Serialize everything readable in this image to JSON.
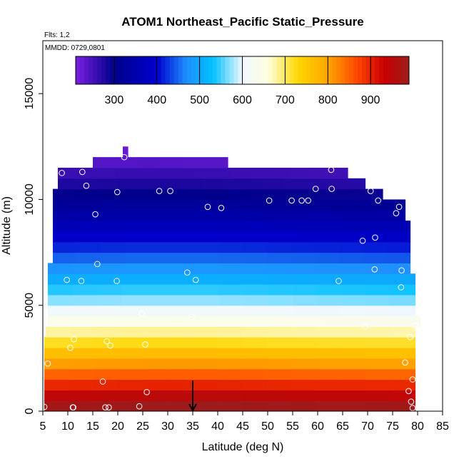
{
  "chart_data": {
    "type": "heatmap",
    "title": "ATOM1 Northeast_Pacific Static_Pressure",
    "flights_note": "Flts: 1,2",
    "dates_note": "MMDD: 0729,0801",
    "xlabel": "Latitude (deg N)",
    "ylabel": "Altitude (m)",
    "xlim": [
      5,
      85
    ],
    "ylim": [
      0,
      17500
    ],
    "x_ticks": [
      "5",
      "10",
      "15",
      "20",
      "25",
      "30",
      "35",
      "40",
      "45",
      "50",
      "55",
      "60",
      "65",
      "70",
      "75",
      "80",
      "85"
    ],
    "y_ticks": [
      "0",
      "5000",
      "10000",
      "15000"
    ],
    "colorbar": {
      "range": [
        210,
        990
      ],
      "ticks": [
        "300",
        "400",
        "500",
        "600",
        "700",
        "800",
        "900"
      ],
      "color_stops": [
        {
          "value": 210,
          "color": "#7a1fe0"
        },
        {
          "value": 300,
          "color": "#00008b"
        },
        {
          "value": 400,
          "color": "#0000cd"
        },
        {
          "value": 470,
          "color": "#1e90ff"
        },
        {
          "value": 530,
          "color": "#00bfff"
        },
        {
          "value": 600,
          "color": "#f0f8ff"
        },
        {
          "value": 660,
          "color": "#ffffe0"
        },
        {
          "value": 730,
          "color": "#ffd700"
        },
        {
          "value": 800,
          "color": "#ffa500"
        },
        {
          "value": 870,
          "color": "#ff4500"
        },
        {
          "value": 930,
          "color": "#cc0000"
        },
        {
          "value": 990,
          "color": "#9b1c1c"
        }
      ]
    },
    "altitude_bin_m": 500,
    "grid_cells": [
      {
        "y0": 0,
        "x0": 5.3,
        "x1": 79.5,
        "values": [
          980,
          982,
          984,
          986,
          987,
          988,
          989,
          988,
          986,
          985,
          984,
          983,
          983,
          982,
          982
        ]
      },
      {
        "y0": 500,
        "x0": 5.3,
        "x1": 79.5,
        "values": [
          945,
          946,
          947,
          948,
          949,
          950,
          950,
          949,
          948,
          947,
          946,
          946,
          945,
          945,
          944
        ]
      },
      {
        "y0": 1000,
        "x0": 5.3,
        "x1": 79.5,
        "values": [
          895,
          897,
          898,
          899,
          900,
          900,
          900,
          899,
          898,
          897,
          896,
          895,
          895,
          894,
          894
        ]
      },
      {
        "y0": 1500,
        "x0": 5.3,
        "x1": 79.5,
        "values": [
          848,
          850,
          851,
          852,
          853,
          853,
          853,
          852,
          851,
          850,
          849,
          848,
          848,
          847,
          847
        ]
      },
      {
        "y0": 2000,
        "x0": 5.3,
        "x1": 79.5,
        "values": [
          805,
          806,
          807,
          808,
          809,
          809,
          809,
          808,
          807,
          806,
          805,
          804,
          804,
          803,
          803
        ]
      },
      {
        "y0": 2500,
        "x0": 5.3,
        "x1": 79.5,
        "values": [
          765,
          766,
          767,
          768,
          768,
          768,
          768,
          767,
          766,
          765,
          764,
          763,
          763,
          762,
          762
        ]
      },
      {
        "y0": 3000,
        "x0": 5.3,
        "x1": 79.5,
        "values": [
          720,
          721,
          722,
          723,
          723,
          723,
          723,
          722,
          721,
          720,
          719,
          718,
          718,
          717,
          717
        ]
      },
      {
        "y0": 3500,
        "x0": 5.6,
        "x1": 79.5,
        "values": [
          680,
          681,
          682,
          683,
          683,
          683,
          683,
          682,
          681,
          680,
          679,
          678,
          678,
          677,
          676
        ]
      },
      {
        "y0": 4000,
        "x0": 6.0,
        "x1": 80.5,
        "values": [
          640,
          641,
          642,
          643,
          643,
          643,
          643,
          642,
          641,
          640,
          639,
          638,
          637,
          636,
          636
        ]
      },
      {
        "y0": 4500,
        "x0": 6.0,
        "x1": 79.5,
        "values": [
          605,
          606,
          607,
          608,
          608,
          608,
          608,
          607,
          606,
          605,
          604,
          603,
          602,
          601,
          600
        ]
      },
      {
        "y0": 5000,
        "x0": 6.0,
        "x1": 79.5,
        "values": [
          570,
          571,
          572,
          573,
          573,
          573,
          573,
          572,
          571,
          570,
          569,
          568,
          567,
          566,
          565
        ]
      },
      {
        "y0": 5500,
        "x0": 6.0,
        "x1": 79.5,
        "values": [
          540,
          541,
          542,
          543,
          543,
          543,
          543,
          542,
          541,
          540,
          539,
          538,
          537,
          536,
          535
        ]
      },
      {
        "y0": 6000,
        "x0": 6.0,
        "x1": 79.5,
        "values": [
          505,
          506,
          507,
          508,
          508,
          508,
          508,
          507,
          506,
          505,
          504,
          503,
          502,
          501,
          500
        ]
      },
      {
        "y0": 6500,
        "x0": 6.0,
        "x1": 78.5,
        "values": [
          475,
          476,
          477,
          478,
          478,
          478,
          478,
          477,
          476,
          475,
          474,
          473,
          472,
          471,
          470
        ]
      },
      {
        "y0": 7000,
        "x0": 7.0,
        "x1": 78.5,
        "values": [
          447,
          448,
          449,
          450,
          450,
          450,
          450,
          449,
          448,
          447,
          446,
          445,
          444,
          443,
          442
        ]
      },
      {
        "y0": 7500,
        "x0": 7.0,
        "x1": 78.5,
        "values": [
          418,
          419,
          420,
          421,
          421,
          421,
          421,
          420,
          419,
          418,
          417,
          416,
          415,
          414,
          413
        ]
      },
      {
        "y0": 8000,
        "x0": 7.0,
        "x1": 78.5,
        "values": [
          392,
          393,
          394,
          395,
          395,
          395,
          395,
          394,
          393,
          392,
          391,
          390,
          389,
          388,
          387
        ]
      },
      {
        "y0": 8500,
        "x0": 7.0,
        "x1": 78.5,
        "values": [
          367,
          368,
          369,
          370,
          370,
          370,
          370,
          369,
          368,
          367,
          366,
          365,
          364,
          363,
          362
        ]
      },
      {
        "y0": 9000,
        "x0": 7.0,
        "x1": 77.5,
        "values": [
          343,
          344,
          345,
          346,
          346,
          346,
          346,
          345,
          344,
          343,
          342,
          341,
          340,
          339,
          338
        ]
      },
      {
        "y0": 9500,
        "x0": 7.0,
        "x1": 77.5,
        "values": [
          320,
          321,
          322,
          323,
          323,
          323,
          323,
          322,
          321,
          320,
          319,
          318,
          317,
          316,
          315
        ]
      },
      {
        "y0": 10000,
        "x0": 7.0,
        "x1": 73.0,
        "values": [
          298,
          299,
          300,
          301,
          301,
          301,
          301,
          300,
          299,
          298,
          297,
          296,
          295,
          294,
          293
        ]
      },
      {
        "y0": 10500,
        "x0": 8.0,
        "x1": 69.5,
        "values": [
          277,
          278,
          279,
          280,
          280,
          280,
          280,
          279,
          278,
          277,
          276,
          275,
          274,
          273,
          272
        ]
      },
      {
        "y0": 11000,
        "x0": 8.0,
        "x1": 66.0,
        "values": [
          258,
          259,
          260,
          261,
          261,
          261,
          261,
          260,
          259,
          258,
          257,
          256,
          255,
          254,
          253
        ]
      },
      {
        "y0": 11500,
        "x0": 15.0,
        "x1": 42.0,
        "values": [
          238,
          239,
          240,
          238,
          236,
          235
        ]
      },
      {
        "y0": 12000,
        "x0": 21.0,
        "x1": 22.0,
        "values": [
          225
        ]
      }
    ],
    "flight_points": [
      {
        "lat": 5.3,
        "alt": 200
      },
      {
        "lat": 11.0,
        "alt": 180
      },
      {
        "lat": 11.1,
        "alt": 180
      },
      {
        "lat": 17.5,
        "alt": 180
      },
      {
        "lat": 18.2,
        "alt": 180
      },
      {
        "lat": 24.3,
        "alt": 230
      },
      {
        "lat": 25.8,
        "alt": 900
      },
      {
        "lat": 17.0,
        "alt": 1400
      },
      {
        "lat": 6.0,
        "alt": 2250
      },
      {
        "lat": 10.5,
        "alt": 3000
      },
      {
        "lat": 11.2,
        "alt": 3400
      },
      {
        "lat": 17.8,
        "alt": 3300
      },
      {
        "lat": 18.5,
        "alt": 3100
      },
      {
        "lat": 25.5,
        "alt": 3150
      },
      {
        "lat": 24.8,
        "alt": 4600
      },
      {
        "lat": 34.8,
        "alt": 4450
      },
      {
        "lat": 69.5,
        "alt": 4000
      },
      {
        "lat": 79.5,
        "alt": 4050
      },
      {
        "lat": 78.5,
        "alt": 3500
      },
      {
        "lat": 77.5,
        "alt": 2300
      },
      {
        "lat": 79.0,
        "alt": 1500
      },
      {
        "lat": 78.2,
        "alt": 950
      },
      {
        "lat": 78.7,
        "alt": 450
      },
      {
        "lat": 79.0,
        "alt": 150
      },
      {
        "lat": 9.8,
        "alt": 6200
      },
      {
        "lat": 12.7,
        "alt": 6150
      },
      {
        "lat": 19.8,
        "alt": 6150
      },
      {
        "lat": 15.9,
        "alt": 6950
      },
      {
        "lat": 33.9,
        "alt": 6550
      },
      {
        "lat": 35.6,
        "alt": 6200
      },
      {
        "lat": 64.2,
        "alt": 6150
      },
      {
        "lat": 71.4,
        "alt": 6700
      },
      {
        "lat": 76.8,
        "alt": 6650
      },
      {
        "lat": 76.7,
        "alt": 5850
      },
      {
        "lat": 69.0,
        "alt": 8050
      },
      {
        "lat": 71.5,
        "alt": 8200
      },
      {
        "lat": 15.5,
        "alt": 9300
      },
      {
        "lat": 38.0,
        "alt": 9650
      },
      {
        "lat": 40.7,
        "alt": 9600
      },
      {
        "lat": 75.7,
        "alt": 9350
      },
      {
        "lat": 76.3,
        "alt": 9650
      },
      {
        "lat": 72.1,
        "alt": 9950
      },
      {
        "lat": 70.6,
        "alt": 10400
      },
      {
        "lat": 50.3,
        "alt": 9950
      },
      {
        "lat": 54.8,
        "alt": 9950
      },
      {
        "lat": 56.8,
        "alt": 9950
      },
      {
        "lat": 58.1,
        "alt": 9950
      },
      {
        "lat": 59.6,
        "alt": 10500
      },
      {
        "lat": 62.8,
        "alt": 10500
      },
      {
        "lat": 62.7,
        "alt": 11400
      },
      {
        "lat": 7.3,
        "alt": 10650
      },
      {
        "lat": 8.8,
        "alt": 11250
      },
      {
        "lat": 12.9,
        "alt": 11300
      },
      {
        "lat": 13.7,
        "alt": 10650
      },
      {
        "lat": 19.9,
        "alt": 10350
      },
      {
        "lat": 28.3,
        "alt": 10400
      },
      {
        "lat": 30.5,
        "alt": 10400
      },
      {
        "lat": 21.3,
        "alt": 12000
      }
    ],
    "arrow_marker": {
      "lat": 35.0,
      "alt_top": 700,
      "alt_bottom": 0
    },
    "grid": false,
    "legend": "colorbar-top"
  }
}
